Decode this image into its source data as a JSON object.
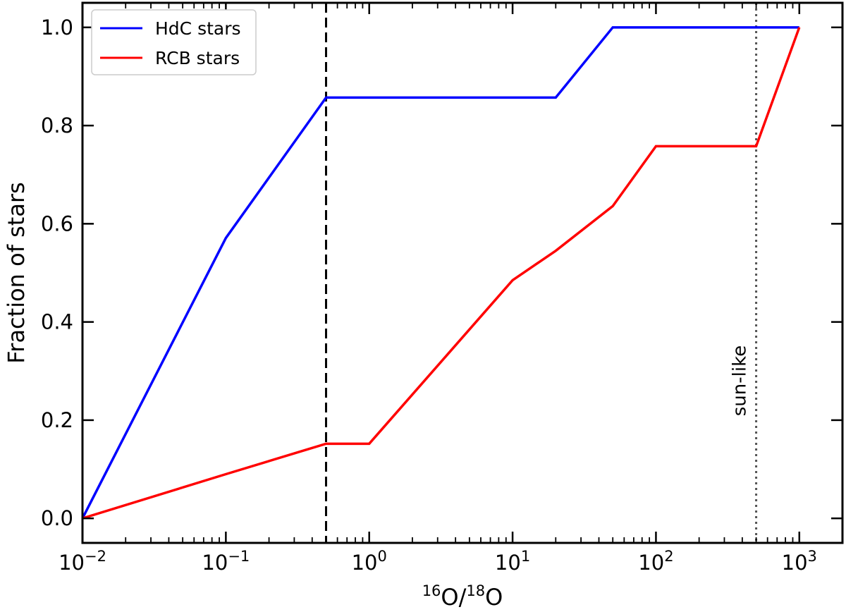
{
  "chart_data": {
    "type": "line",
    "title": "",
    "xlabel": {
      "iso_a": "16",
      "elem_a": "O/",
      "iso_b": "18",
      "elem_b": "O"
    },
    "ylabel": "Fraction of stars",
    "xscale": "log",
    "xlim": [
      0.01,
      2000
    ],
    "ylim": [
      -0.05,
      1.05
    ],
    "grid": false,
    "legend_position": "top-left",
    "x_ticks": [
      {
        "value": 0.01,
        "base": "10",
        "exp": "−2"
      },
      {
        "value": 0.1,
        "base": "10",
        "exp": "−1"
      },
      {
        "value": 1,
        "base": "10",
        "exp": "0"
      },
      {
        "value": 10,
        "base": "10",
        "exp": "1"
      },
      {
        "value": 100,
        "base": "10",
        "exp": "2"
      },
      {
        "value": 1000,
        "base": "10",
        "exp": "3"
      }
    ],
    "y_ticks": [
      {
        "value": 0.0,
        "label": "0.0"
      },
      {
        "value": 0.2,
        "label": "0.2"
      },
      {
        "value": 0.4,
        "label": "0.4"
      },
      {
        "value": 0.6,
        "label": "0.6"
      },
      {
        "value": 0.8,
        "label": "0.8"
      },
      {
        "value": 1.0,
        "label": "1.0"
      }
    ],
    "series": [
      {
        "name": "HdC stars",
        "color": "#0000ff",
        "x": [
          0.01,
          0.1,
          0.5,
          20,
          50,
          1000
        ],
        "y": [
          0.0,
          0.571,
          0.857,
          0.857,
          1.0,
          1.0
        ]
      },
      {
        "name": "RCB stars",
        "color": "#ff0000",
        "x": [
          0.01,
          0.1,
          0.5,
          1,
          10,
          20,
          50,
          100,
          500,
          1000
        ],
        "y": [
          0.0,
          0.09,
          0.152,
          0.152,
          0.485,
          0.545,
          0.636,
          0.758,
          0.758,
          1.0
        ]
      }
    ],
    "reference_lines": [
      {
        "x": 0.5,
        "style": "dashed",
        "color": "#000000",
        "label": ""
      },
      {
        "x": 500,
        "style": "dotted",
        "color": "#555555",
        "label": "sun-like"
      }
    ]
  }
}
